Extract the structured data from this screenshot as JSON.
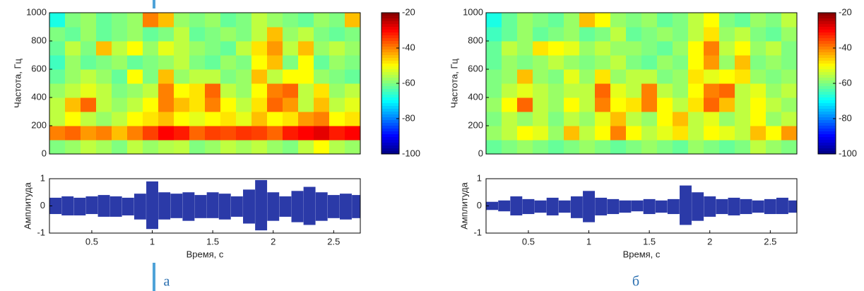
{
  "captions": [
    "а",
    "б"
  ],
  "chart_data": [
    {
      "type": "heatmap",
      "ylabel": "Частота, Гц",
      "ylim": [
        0,
        1000
      ],
      "yticks": [
        0,
        200,
        400,
        600,
        800,
        1000
      ],
      "zlim": [
        -100,
        -20
      ],
      "zticks": [
        -20,
        -40,
        -60,
        -80,
        -100
      ],
      "rows": [
        [
          -60,
          -58,
          -55,
          -57,
          -60,
          -55,
          -58,
          -56,
          -55,
          -60,
          -58,
          -55,
          -57,
          -55,
          -58,
          -60,
          -55,
          -50,
          -56,
          -58
        ],
        [
          -40,
          -38,
          -42,
          -40,
          -45,
          -40,
          -35,
          -30,
          -32,
          -38,
          -35,
          -36,
          -34,
          -35,
          -38,
          -32,
          -30,
          -28,
          -32,
          -30
        ],
        [
          -55,
          -50,
          -55,
          -58,
          -55,
          -50,
          -48,
          -45,
          -50,
          -52,
          -50,
          -48,
          -52,
          -45,
          -50,
          -48,
          -42,
          -40,
          -50,
          -48
        ],
        [
          -55,
          -45,
          -38,
          -55,
          -58,
          -55,
          -50,
          -40,
          -45,
          -48,
          -40,
          -50,
          -55,
          -48,
          -38,
          -42,
          -55,
          -45,
          -55,
          -52
        ],
        [
          -58,
          -55,
          -52,
          -55,
          -60,
          -58,
          -55,
          -40,
          -50,
          -48,
          -38,
          -55,
          -58,
          -50,
          -40,
          -38,
          -55,
          -48,
          -58,
          -55
        ],
        [
          -62,
          -58,
          -55,
          -58,
          -62,
          -50,
          -60,
          -45,
          -58,
          -55,
          -55,
          -60,
          -58,
          -45,
          -55,
          -50,
          -50,
          -58,
          -60,
          -62
        ],
        [
          -65,
          -58,
          -62,
          -60,
          -58,
          -62,
          -60,
          -58,
          -55,
          -60,
          -62,
          -58,
          -60,
          -50,
          -45,
          -60,
          -50,
          -62,
          -58,
          -60
        ],
        [
          -62,
          -55,
          -60,
          -45,
          -55,
          -50,
          -58,
          -52,
          -55,
          -58,
          -60,
          -62,
          -55,
          -48,
          -42,
          -55,
          -45,
          -58,
          -55,
          -58
        ],
        [
          -60,
          -62,
          -58,
          -62,
          -60,
          -58,
          -62,
          -60,
          -55,
          -62,
          -60,
          -58,
          -60,
          -55,
          -45,
          -58,
          -55,
          -60,
          -62,
          -60
        ],
        [
          -68,
          -60,
          -58,
          -62,
          -60,
          -58,
          -40,
          -45,
          -58,
          -60,
          -58,
          -62,
          -60,
          -55,
          -58,
          -60,
          -62,
          -58,
          -60,
          -45
        ]
      ]
    },
    {
      "type": "envelope",
      "ylabel": "Амплитуда",
      "xlabel": "Время, с",
      "xlim": [
        0.15,
        2.72
      ],
      "ylim": [
        -1,
        1
      ],
      "xticks": [
        0.5,
        1,
        1.5,
        2,
        2.5
      ],
      "yticks": [
        -1,
        0,
        1
      ],
      "x": [
        0.2,
        0.3,
        0.4,
        0.5,
        0.6,
        0.7,
        0.8,
        0.9,
        1.0,
        1.1,
        1.2,
        1.3,
        1.4,
        1.5,
        1.6,
        1.7,
        1.8,
        1.9,
        2.0,
        2.1,
        2.2,
        2.3,
        2.4,
        2.5,
        2.6,
        2.7
      ],
      "color": "#2b3aa8",
      "upper": [
        0.3,
        0.35,
        0.3,
        0.35,
        0.4,
        0.35,
        0.3,
        0.45,
        0.9,
        0.5,
        0.45,
        0.5,
        0.4,
        0.5,
        0.45,
        0.35,
        0.6,
        0.95,
        0.5,
        0.35,
        0.55,
        0.7,
        0.5,
        0.4,
        0.45,
        0.4
      ],
      "lower": [
        -0.3,
        -0.35,
        -0.35,
        -0.3,
        -0.4,
        -0.4,
        -0.35,
        -0.5,
        -0.85,
        -0.5,
        -0.45,
        -0.55,
        -0.45,
        -0.45,
        -0.5,
        -0.4,
        -0.65,
        -0.9,
        -0.55,
        -0.4,
        -0.6,
        -0.7,
        -0.55,
        -0.45,
        -0.5,
        -0.45
      ]
    },
    {
      "type": "heatmap",
      "ylabel": "Частота, Гц",
      "ylim": [
        0,
        1000
      ],
      "yticks": [
        0,
        200,
        400,
        600,
        800,
        1000
      ],
      "zlim": [
        -100,
        -20
      ],
      "zticks": [
        -20,
        -40,
        -60,
        -80,
        -100
      ],
      "rows": [
        [
          -62,
          -60,
          -58,
          -60,
          -62,
          -60,
          -58,
          -60,
          -62,
          -60,
          -58,
          -60,
          -62,
          -58,
          -60,
          -62,
          -60,
          -55,
          -58,
          -60
        ],
        [
          -58,
          -55,
          -50,
          -52,
          -58,
          -45,
          -55,
          -50,
          -40,
          -50,
          -55,
          -52,
          -48,
          -55,
          -50,
          -52,
          -55,
          -45,
          -50,
          -42
        ],
        [
          -60,
          -55,
          -58,
          -55,
          -60,
          -55,
          -58,
          -52,
          -45,
          -55,
          -58,
          -50,
          -45,
          -55,
          -52,
          -58,
          -55,
          -50,
          -58,
          -55
        ],
        [
          -58,
          -50,
          -38,
          -55,
          -58,
          -50,
          -55,
          -40,
          -50,
          -48,
          -40,
          -50,
          -55,
          -48,
          -38,
          -45,
          -55,
          -50,
          -55,
          -58
        ],
        [
          -60,
          -55,
          -52,
          -55,
          -58,
          -55,
          -55,
          -38,
          -52,
          -55,
          -40,
          -55,
          -58,
          -50,
          -40,
          -38,
          -55,
          -52,
          -58,
          -55
        ],
        [
          -60,
          -58,
          -45,
          -58,
          -60,
          -52,
          -58,
          -48,
          -58,
          -55,
          -55,
          -60,
          -58,
          -48,
          -52,
          -50,
          -48,
          -58,
          -60,
          -58
        ],
        [
          -62,
          -58,
          -60,
          -58,
          -55,
          -58,
          -60,
          -58,
          -55,
          -60,
          -62,
          -58,
          -60,
          -50,
          -42,
          -58,
          -45,
          -60,
          -58,
          -60
        ],
        [
          -62,
          -55,
          -58,
          -48,
          -50,
          -52,
          -58,
          -55,
          -58,
          -58,
          -60,
          -62,
          -58,
          -50,
          -40,
          -55,
          -50,
          -58,
          -55,
          -60
        ],
        [
          -65,
          -62,
          -58,
          -62,
          -60,
          -58,
          -62,
          -60,
          -55,
          -62,
          -60,
          -58,
          -60,
          -55,
          -48,
          -58,
          -55,
          -60,
          -62,
          -58
        ],
        [
          -68,
          -62,
          -58,
          -60,
          -62,
          -58,
          -45,
          -50,
          -58,
          -60,
          -58,
          -62,
          -60,
          -55,
          -50,
          -60,
          -62,
          -58,
          -60,
          -55
        ]
      ]
    },
    {
      "type": "envelope",
      "ylabel": "Амплитуда",
      "xlabel": "Время, с",
      "xlim": [
        0.15,
        2.72
      ],
      "ylim": [
        -1,
        1
      ],
      "xticks": [
        0.5,
        1,
        1.5,
        2,
        2.5
      ],
      "yticks": [
        -1,
        0,
        1
      ],
      "x": [
        0.2,
        0.3,
        0.4,
        0.5,
        0.6,
        0.7,
        0.8,
        0.9,
        1.0,
        1.1,
        1.2,
        1.3,
        1.4,
        1.5,
        1.6,
        1.7,
        1.8,
        1.9,
        2.0,
        2.1,
        2.2,
        2.3,
        2.4,
        2.5,
        2.6,
        2.7
      ],
      "color": "#2b3aa8",
      "upper": [
        0.15,
        0.2,
        0.35,
        0.25,
        0.2,
        0.3,
        0.2,
        0.35,
        0.55,
        0.3,
        0.25,
        0.2,
        0.2,
        0.25,
        0.2,
        0.25,
        0.75,
        0.5,
        0.35,
        0.25,
        0.3,
        0.25,
        0.2,
        0.25,
        0.3,
        0.2
      ],
      "lower": [
        -0.15,
        -0.2,
        -0.35,
        -0.3,
        -0.25,
        -0.35,
        -0.25,
        -0.45,
        -0.6,
        -0.35,
        -0.3,
        -0.25,
        -0.2,
        -0.3,
        -0.25,
        -0.3,
        -0.7,
        -0.55,
        -0.4,
        -0.3,
        -0.35,
        -0.3,
        -0.25,
        -0.3,
        -0.3,
        -0.25
      ]
    }
  ]
}
